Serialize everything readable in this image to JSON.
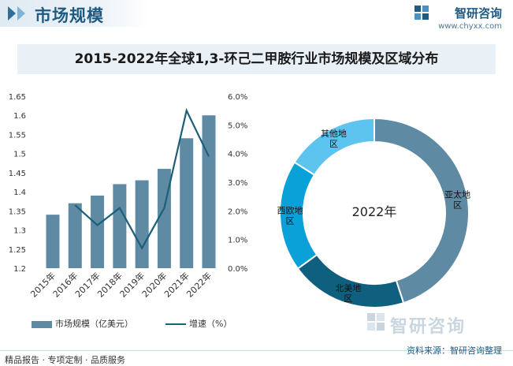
{
  "header": {
    "section_title": "市场规模",
    "brand_name": "智研咨询",
    "brand_url": "www.chyxx.com"
  },
  "colors": {
    "bar": "#5f8aa4",
    "line": "#1b5f7a",
    "donut": [
      "#5f8aa4",
      "#0f5f7e",
      "#0aa0d8",
      "#5cc4ee"
    ],
    "title_band": "#e9f1f7"
  },
  "chart_data": [
    {
      "type": "bar",
      "title": "2015-2022年全球1,3-环己二甲胺行业市场规模及区域分布",
      "categories": [
        "2015年",
        "2016年",
        "2017年",
        "2018年",
        "2019年",
        "2020年",
        "2021年",
        "2022年"
      ],
      "series": [
        {
          "name": "市场规模（亿美元）",
          "type": "bar",
          "axis": "left",
          "values": [
            1.34,
            1.37,
            1.39,
            1.42,
            1.43,
            1.46,
            1.54,
            1.6
          ]
        },
        {
          "name": "增速（%）",
          "type": "line",
          "axis": "right",
          "values": [
            null,
            2.2,
            1.5,
            2.1,
            0.7,
            2.1,
            5.5,
            3.9
          ]
        }
      ],
      "y_left": {
        "ylim": [
          1.2,
          1.65
        ],
        "ticks": [
          "1.2",
          "1.25",
          "1.3",
          "1.35",
          "1.4",
          "1.45",
          "1.5",
          "1.55",
          "1.6",
          "1.65"
        ]
      },
      "y_right": {
        "ylim": [
          0,
          6
        ],
        "ticks": [
          "0.0%",
          "1.0%",
          "2.0%",
          "3.0%",
          "4.0%",
          "5.0%",
          "6.0%"
        ]
      },
      "grid": false,
      "legend": "bottom"
    },
    {
      "type": "pie",
      "center_label": "2022年",
      "labels": [
        "亚太地区",
        "北美地区",
        "西欧地区",
        "其他地区"
      ],
      "values": [
        45,
        20,
        19,
        16
      ]
    }
  ],
  "footer": {
    "left": "精品报告 · 专项定制 · 品质服务",
    "source": "资料来源：智研咨询整理"
  }
}
